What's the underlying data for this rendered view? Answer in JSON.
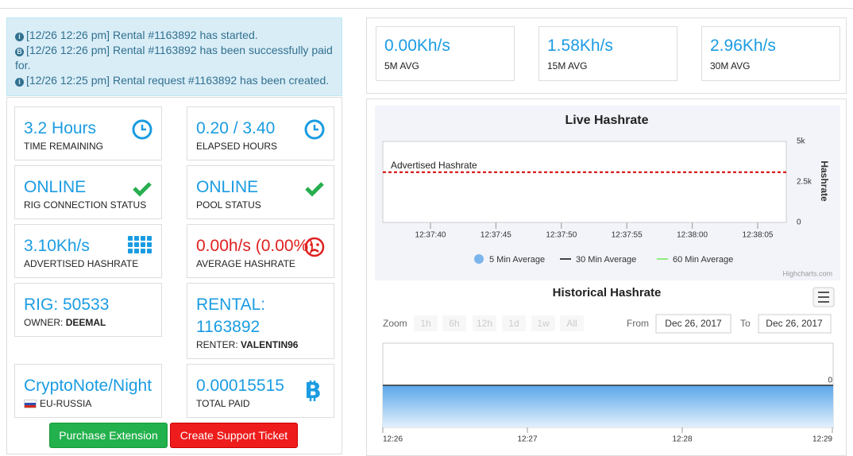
{
  "notifications": [
    "[12/26 12:26 pm] Rental #1163892 has started.",
    "[12/26 12:26 pm] Rental #1163892 has been successfully paid for.",
    "[12/26 12:25 pm] Rental request #1163892 has been created."
  ],
  "cards": [
    {
      "value": "3.2 Hours",
      "label": "TIME REMAINING"
    },
    {
      "value": "0.20 / 3.40",
      "label": "ELAPSED HOURS"
    },
    {
      "value": "ONLINE",
      "label": "RIG CONNECTION STATUS"
    },
    {
      "value": "ONLINE",
      "label": "POOL STATUS"
    },
    {
      "value": "3.10Kh/s",
      "label": "ADVERTISED HASHRATE"
    },
    {
      "value": "0.00h/s (0.00%)",
      "label": "AVERAGE HASHRATE"
    },
    {
      "value": "RIG: 50533",
      "label": "OWNER:",
      "label_value": "DEEMAL"
    },
    {
      "value": "RENTAL: 1163892",
      "label": "RENTER:",
      "label_value": "VALENTIN96"
    },
    {
      "value": "CryptoNote/Night",
      "label": "EU-RUSSIA"
    },
    {
      "value": "0.00015515",
      "label": "TOTAL PAID"
    }
  ],
  "buttons": [
    "Purchase Extension",
    "Create Support Ticket"
  ],
  "averages": [
    {
      "value": "0.00Kh/s",
      "label": "5M AVG"
    },
    {
      "value": "1.58Kh/s",
      "label": "15M AVG"
    },
    {
      "value": "2.96Kh/s",
      "label": "30M AVG"
    }
  ],
  "live_chart": {
    "type": "line",
    "title": "Live Hashrate",
    "y_label": "Hashrate",
    "ylim": [
      0,
      5000
    ],
    "yticks": [
      0,
      {
        "value": 2500,
        "label": "2.5k"
      },
      {
        "value": 5000,
        "label": "5k"
      }
    ],
    "xticks": [
      "12:37:40",
      "12:37:45",
      "12:37:50",
      "12:37:55",
      "12:38:00",
      "12:38:05"
    ],
    "plot_line": {
      "label": "Advertised Hashrate",
      "value": 3100,
      "color": "#d40000"
    },
    "series": [
      {
        "name": "5 Min Average",
        "color": "#7cb5ec"
      },
      {
        "name": "30 Min Average",
        "color": "#434348"
      },
      {
        "name": "60 Min Average",
        "color": "#90ed7d"
      }
    ],
    "credit": "Highcharts.com"
  },
  "historical_chart": {
    "type": "area",
    "title": "Historical Hashrate",
    "zoom_label": "Zoom",
    "zoom_buttons": [
      "1h",
      "6h",
      "12h",
      "1d",
      "1w",
      "All"
    ],
    "from_label": "From",
    "from": "Dec 26, 2017",
    "to_label": "To",
    "to": "Dec 26, 2017",
    "xticks": [
      "12:26",
      "12:27",
      "12:28",
      "12:29"
    ],
    "yticks": [
      0
    ]
  }
}
